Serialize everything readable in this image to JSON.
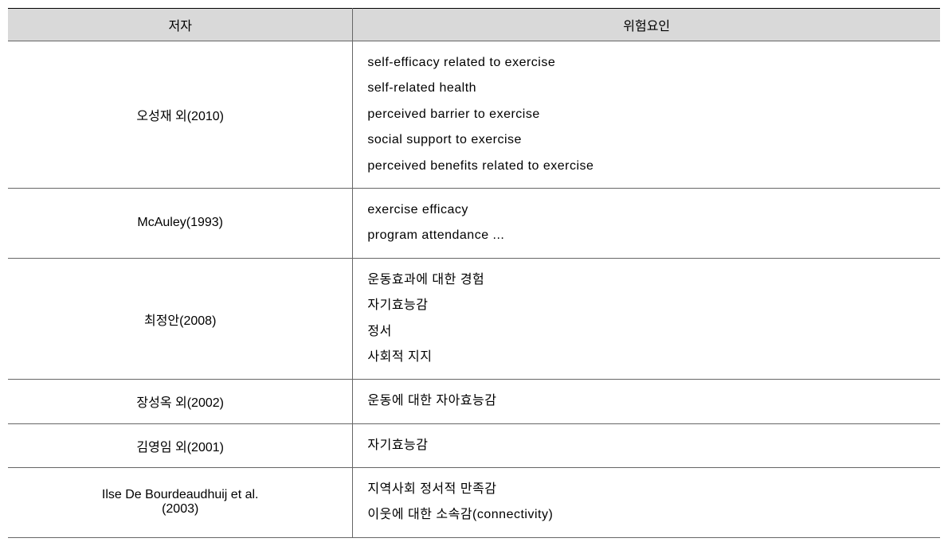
{
  "table": {
    "background_color": "#ffffff",
    "header_bg_color": "#d9d9d9",
    "border_color": "#666666",
    "top_border_color": "#000000",
    "text_color": "#000000",
    "font_size": 16,
    "columns": [
      {
        "key": "author",
        "label": "저자",
        "width_pct": 37,
        "align": "center"
      },
      {
        "key": "risk_factor",
        "label": "위험요인",
        "width_pct": 63,
        "align": "left"
      }
    ],
    "rows": [
      {
        "author": "오성재 외(2010)",
        "risk_factors": [
          "self-efficacy related to exercise",
          "self-related health",
          "perceived barrier to exercise",
          "social support to exercise",
          "perceived benefits related to exercise"
        ]
      },
      {
        "author": "McAuley(1993)",
        "risk_factors": [
          "exercise efficacy",
          "program attendance ..."
        ]
      },
      {
        "author": "최정안(2008)",
        "risk_factors": [
          "운동효과에 대한 경험",
          "자기효능감",
          "정서",
          "사회적 지지"
        ]
      },
      {
        "author": "장성옥 외(2002)",
        "risk_factors": [
          "운동에 대한 자아효능감"
        ]
      },
      {
        "author": "김영임 외(2001)",
        "risk_factors": [
          "자기효능감"
        ]
      },
      {
        "author": "Ilse De Bourdeaudhuij et al.\n(2003)",
        "risk_factors": [
          "지역사회 정서적 만족감",
          "이웃에 대한 소속감(connectivity)"
        ]
      }
    ]
  }
}
